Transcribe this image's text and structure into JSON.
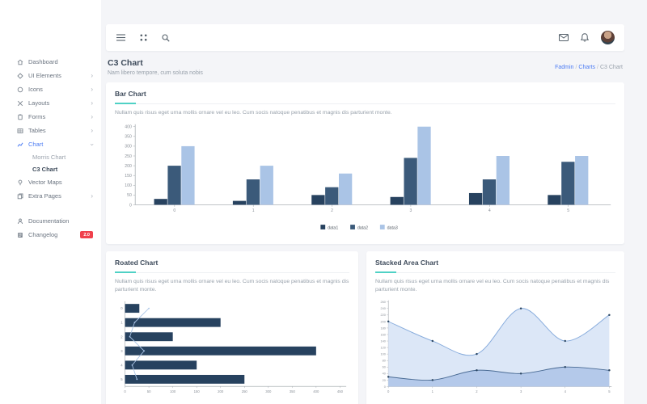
{
  "sidebar": {
    "items": [
      {
        "label": "Dashboard",
        "icon": "dashboard"
      },
      {
        "label": "UI Elements",
        "icon": "ui-elements",
        "chevron": true
      },
      {
        "label": "Icons",
        "icon": "icons",
        "chevron": true
      },
      {
        "label": "Layouts",
        "icon": "layouts",
        "chevron": true
      },
      {
        "label": "Forms",
        "icon": "forms",
        "chevron": true
      },
      {
        "label": "Tables",
        "icon": "tables",
        "chevron": true
      },
      {
        "label": "Chart",
        "icon": "chart",
        "chevron": true,
        "active": true,
        "open": true
      },
      {
        "label": "Morris Chart",
        "sub": true
      },
      {
        "label": "C3 Chart",
        "sub": true,
        "current": true
      },
      {
        "label": "Vector Maps",
        "icon": "vector-maps"
      },
      {
        "label": "Extra Pages",
        "icon": "extra-pages",
        "chevron": true
      },
      {
        "label": "Documentation",
        "icon": "documentation",
        "section_break": true
      },
      {
        "label": "Changelog",
        "icon": "changelog",
        "badge": "2.0"
      }
    ]
  },
  "topbar": {
    "left_icons": [
      "menu",
      "grid",
      "search"
    ],
    "right_icons": [
      "mail",
      "bell"
    ]
  },
  "page": {
    "title": "C3 Chart",
    "subtitle": "Nam libero tempore, cum soluta nobis",
    "breadcrumb": [
      "Fadmin",
      "Charts",
      "C3 Chart"
    ]
  },
  "cards": {
    "bar": {
      "desc": "Nullam quis risus eget urna mollis ornare vel eu leo. Cum socis natoque penatibus et magnis dis parturient monte."
    },
    "rotated": {
      "desc": "Nullam quis risus eget urna mollis ornare vel eu leo. Cum socis natoque penatibus et magnis dis parturient monte."
    },
    "stacked": {
      "desc": "Nullam quis risus eget urna mollis ornare vel eu leo. Cum socis natoque penatibus et magnis dis parturient monte."
    }
  },
  "accent_colors": {
    "teal_underline": "#4fd1c5",
    "link_blue": "#4c7cf3",
    "badge_red": "#f0404c"
  },
  "chart_data": [
    {
      "type": "bar",
      "title": "Bar Chart",
      "categories": [
        "0",
        "1",
        "2",
        "3",
        "4",
        "5"
      ],
      "series": [
        {
          "name": "data1",
          "color": "#27425f",
          "values": [
            30,
            20,
            50,
            40,
            60,
            50
          ]
        },
        {
          "name": "data2",
          "color": "#3b5a7a",
          "values": [
            200,
            130,
            90,
            240,
            130,
            220
          ]
        },
        {
          "name": "data3",
          "color": "#aac4e6",
          "values": [
            300,
            200,
            160,
            400,
            250,
            250
          ]
        }
      ],
      "ylim": [
        0,
        400
      ],
      "ytick_step": 50,
      "grid": false,
      "legend_position": "bottom"
    },
    {
      "type": "bar",
      "rotated": true,
      "title": "Roated Chart",
      "categories": [
        "0",
        "1",
        "2",
        "3",
        "4",
        "5"
      ],
      "series": [
        {
          "name": "data1",
          "kind": "bar",
          "color": "#27425f",
          "values": [
            30,
            200,
            100,
            400,
            150,
            250
          ]
        },
        {
          "name": "data2",
          "kind": "line",
          "color": "#aac4e6",
          "values": [
            50,
            20,
            10,
            40,
            15,
            25
          ]
        }
      ],
      "xlim": [
        0,
        450
      ],
      "xtick_step": 50,
      "grid": false,
      "legend_position": "hidden"
    },
    {
      "type": "area",
      "stacked": true,
      "title": "Stacked Area Chart",
      "x": [
        0,
        1,
        2,
        3,
        4,
        5
      ],
      "series": [
        {
          "name": "data1",
          "fill": "#b4c9ea",
          "line_color": "#4a6b94",
          "values": [
            30,
            20,
            50,
            40,
            60,
            50
          ]
        },
        {
          "name": "data2",
          "fill": "#dce7f7",
          "line_color": "#86abdc",
          "values": [
            170,
            120,
            50,
            200,
            80,
            170
          ]
        }
      ],
      "ylim": [
        0,
        260
      ],
      "ytick_step": 20,
      "grid": false,
      "legend_position": "hidden"
    }
  ]
}
